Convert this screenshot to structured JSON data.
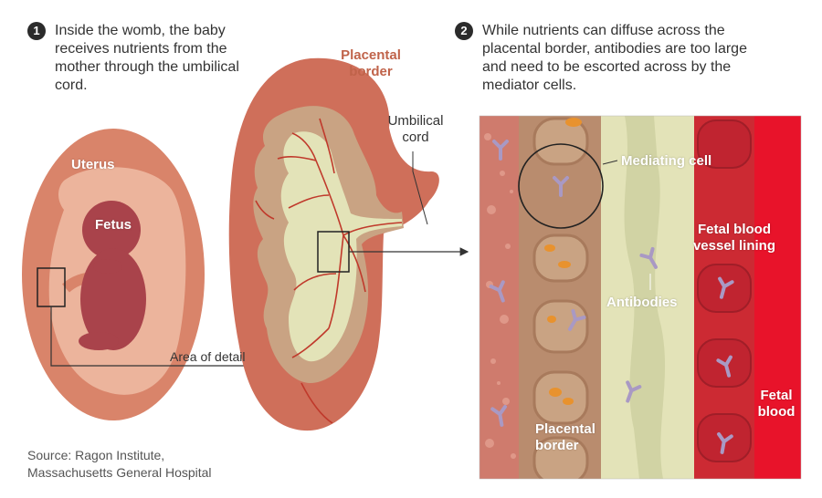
{
  "steps": [
    {
      "number": "1",
      "text": "Inside the womb, the baby receives nutrients from the mother through the umbilical cord."
    },
    {
      "number": "2",
      "text": "While nutrients can diffuse across the placental border, antibodies are too large and need to be escorted across by the mediator cells."
    }
  ],
  "labels": {
    "uterus": "Uterus",
    "fetus": "Fetus",
    "area_of_detail": "Area of detail",
    "placental_border_top": "Placental border",
    "umbilical_cord": "Umbilical cord",
    "mediating_cell": "Mediating cell",
    "antibodies": "Antibodies",
    "fetal_blood_vessel_lining": "Fetal blood vessel lining",
    "fetal_blood": "Fetal blood",
    "placental_border_bottom": "Placental border"
  },
  "source": {
    "line1": "Source: Ragon Institute,",
    "line2": "Massachusetts General Hospital"
  },
  "colors": {
    "uterus_outer": "#d9846a",
    "uterus_inner": "#ecb49c",
    "fetus": "#a9434b",
    "placenta_outer": "#cf6f5a",
    "placenta_inner": "#c9a383",
    "channel": "#e3e3b8",
    "vessel": "#c0392b",
    "maternal_blood": "#cf7b6d",
    "cell_wall": "#b98c6e",
    "fetal_lining": "#cc2a33",
    "fetal_blood": "#e8132a",
    "antibody": "#a999c4"
  }
}
